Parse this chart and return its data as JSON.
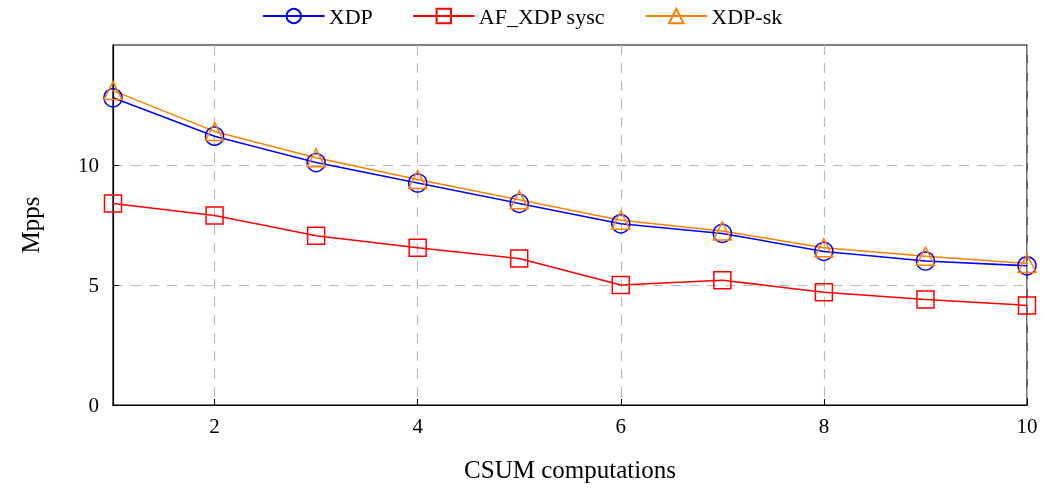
{
  "chart_data": {
    "type": "line",
    "xlabel": "CSUM computations",
    "ylabel": "Mpps",
    "x": [
      1,
      2,
      3,
      4,
      5,
      6,
      7,
      8,
      9,
      10
    ],
    "series": [
      {
        "name": "XDP",
        "color": "#0000ff",
        "marker": "circle",
        "values": [
          12.8,
          11.2,
          10.1,
          9.25,
          8.4,
          7.55,
          7.15,
          6.4,
          6.0,
          5.8
        ]
      },
      {
        "name": "AF_XDP sysc",
        "color": "#ff0000",
        "marker": "square",
        "values": [
          8.4,
          7.9,
          7.05,
          6.55,
          6.1,
          5.0,
          5.2,
          4.7,
          4.4,
          4.15
        ]
      },
      {
        "name": "XDP-sk",
        "color": "#ff8000",
        "marker": "triangle",
        "values": [
          13.1,
          11.4,
          10.3,
          9.4,
          8.55,
          7.7,
          7.25,
          6.55,
          6.2,
          5.9
        ]
      }
    ],
    "xlim": [
      1,
      10
    ],
    "xticks": [
      2,
      4,
      6,
      8,
      10
    ],
    "ylim": [
      0,
      15
    ],
    "yticks": [
      0,
      5,
      10
    ],
    "grid": true,
    "legend": "top",
    "line_style": "solid"
  }
}
